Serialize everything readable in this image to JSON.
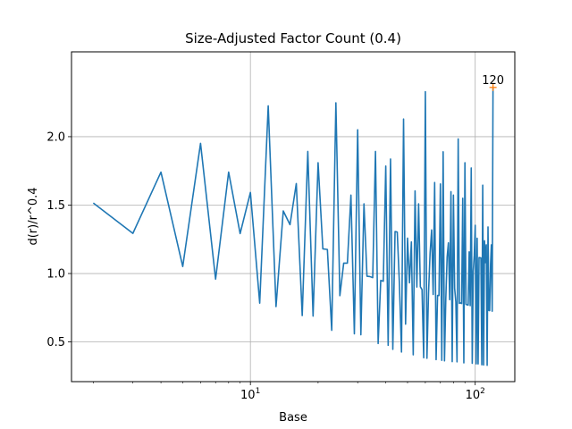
{
  "chart_data": {
    "type": "line",
    "title": "Size-Adjusted Factor Count (0.4)",
    "xlabel": "Base",
    "ylabel": "d(r)/r^0.4",
    "xscale": "log",
    "xlim": [
      1.6,
      150
    ],
    "ylim": [
      0.21,
      2.62
    ],
    "grid": true,
    "xticks": [
      {
        "value": 10,
        "base": "10",
        "exp": "1"
      },
      {
        "value": 100,
        "base": "10",
        "exp": "2"
      }
    ],
    "yticks": [
      0.5,
      1.0,
      1.5,
      2.0
    ],
    "ytick_labels": [
      "0.5",
      "1.0",
      "1.5",
      "2.0"
    ],
    "series": [
      {
        "color": "#1f77b4",
        "x": [
          2,
          3,
          4,
          5,
          6,
          7,
          8,
          9,
          10,
          11,
          12,
          13,
          14,
          15,
          16,
          17,
          18,
          19,
          20,
          21,
          22,
          23,
          24,
          25,
          26,
          27,
          28,
          29,
          30,
          31,
          32,
          33,
          34,
          35,
          36,
          37,
          38,
          39,
          40,
          41,
          42,
          43,
          44,
          45,
          46,
          47,
          48,
          49,
          50,
          51,
          52,
          53,
          54,
          55,
          56,
          57,
          58,
          59,
          60,
          61,
          62,
          63,
          64,
          65,
          66,
          67,
          68,
          69,
          70,
          71,
          72,
          73,
          74,
          75,
          76,
          77,
          78,
          79,
          80,
          81,
          82,
          83,
          84,
          85,
          86,
          87,
          88,
          89,
          90,
          91,
          92,
          93,
          94,
          95,
          96,
          97,
          98,
          99,
          100,
          101,
          102,
          103,
          104,
          105,
          106,
          107,
          108,
          109,
          110,
          111,
          112,
          113,
          114,
          115,
          116,
          117,
          118,
          119,
          120
        ],
        "y": [
          1.5157,
          1.2934,
          1.7411,
          1.0513,
          1.9512,
          0.9591,
          1.7411,
          1.2918,
          1.5924,
          0.7834,
          2.2251,
          0.7585,
          1.4573,
          1.3572,
          1.6574,
          0.6929,
          1.8919,
          0.6891,
          1.8097,
          1.1803,
          1.1758,
          0.5853,
          2.2473,
          0.8381,
          1.076,
          1.0761,
          1.5727,
          0.5596,
          2.0507,
          0.5526,
          1.5096,
          0.9804,
          0.9778,
          0.9699,
          1.8919,
          0.4884,
          0.9493,
          0.9432,
          1.7857,
          0.4756,
          1.8371,
          0.4459,
          1.307,
          1.3032,
          0.9274,
          0.4268,
          2.1294,
          0.6302,
          1.259,
          0.9319,
          1.2313,
          0.4059,
          1.6044,
          0.9013,
          1.5096,
          0.9035,
          0.8822,
          0.3846,
          2.3294,
          0.3809,
          0.8598,
          1.1517,
          1.318,
          0.8469,
          1.665,
          0.3708,
          0.8402,
          0.839,
          1.6544,
          0.3658,
          1.8897,
          0.3621,
          0.8189,
          1.1197,
          1.224,
          0.8091,
          1.5982,
          0.3565,
          1.5727,
          0.891,
          0.7933,
          0.3545,
          1.9836,
          0.7825,
          0.7855,
          0.781,
          1.5505,
          0.3472,
          1.8097,
          0.7746,
          0.772,
          0.7694,
          1.1585,
          0.7652,
          1.7713,
          0.3439,
          1.0176,
          1.1313,
          1.3523,
          0.3398,
          1.2578,
          0.3397,
          1.1167,
          1.1154,
          1.1141,
          0.3337,
          1.6454,
          0.332,
          1.239,
          1.08,
          1.21,
          0.3293,
          1.34,
          0.7302,
          0.729,
          1.07,
          1.21,
          0.725,
          2.36
        ]
      }
    ],
    "annotations": [
      {
        "x": 120,
        "y": 2.36,
        "text": "120",
        "marker": "+",
        "color": "#ff7f0e"
      }
    ]
  }
}
